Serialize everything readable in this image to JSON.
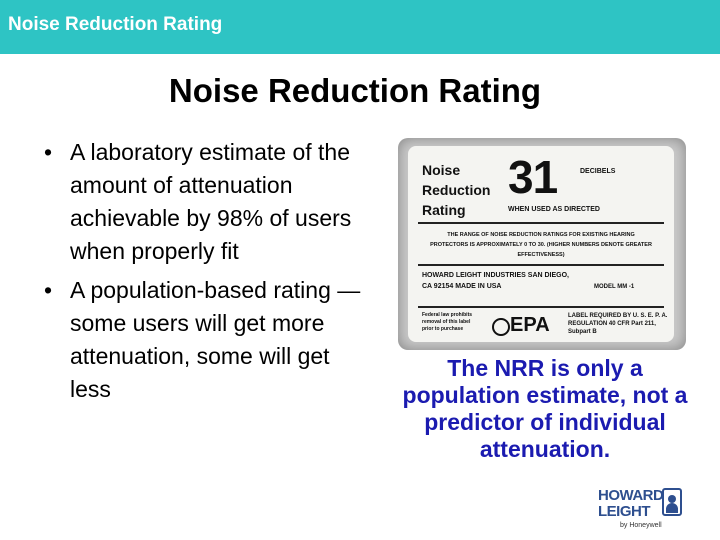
{
  "header": {
    "title": "Noise Reduction Rating",
    "color": "#2ec4c4"
  },
  "slide": {
    "title": "Noise Reduction Rating",
    "bullets": [
      {
        "text": "A laboratory estimate of the amount of attenuation achievable by 98% of users when properly fit"
      },
      {
        "text": "A population-based rating — some users will get more attenuation, some will get less"
      }
    ],
    "bullet_char": "•",
    "caption": "The NRR is only a population estimate, not a predictor of individual attenuation.",
    "caption_color": "#1b1bb0"
  },
  "label_image": {
    "rating_words": "Noise Reduction Rating",
    "rating_value": "31",
    "unit": "DECIBELS",
    "condition": "WHEN USED AS DIRECTED",
    "range_note": "THE RANGE OF NOISE REDUCTION RATINGS FOR EXISTING HEARING PROTECTORS IS APPROXIMATELY 0 TO 30. (HIGHER NUMBERS DENOTE GREATER EFFECTIVENESS)",
    "manufacturer": "HOWARD LEIGHT INDUSTRIES SAN DIEGO, CA 92154 MADE IN USA",
    "model": "MODEL MM -1",
    "federal_note": "Federal law prohibits removal of this label prior to purchase",
    "agency": "EPA",
    "requirement": "LABEL REQUIRED BY U. S. E. P. A. REGULATION 40 CFR Part 211, Subpart B"
  },
  "logo": {
    "line1": "HOWARD",
    "line2": "LEIGHT",
    "sub": "by Honeywell",
    "color": "#2e4f8f"
  }
}
